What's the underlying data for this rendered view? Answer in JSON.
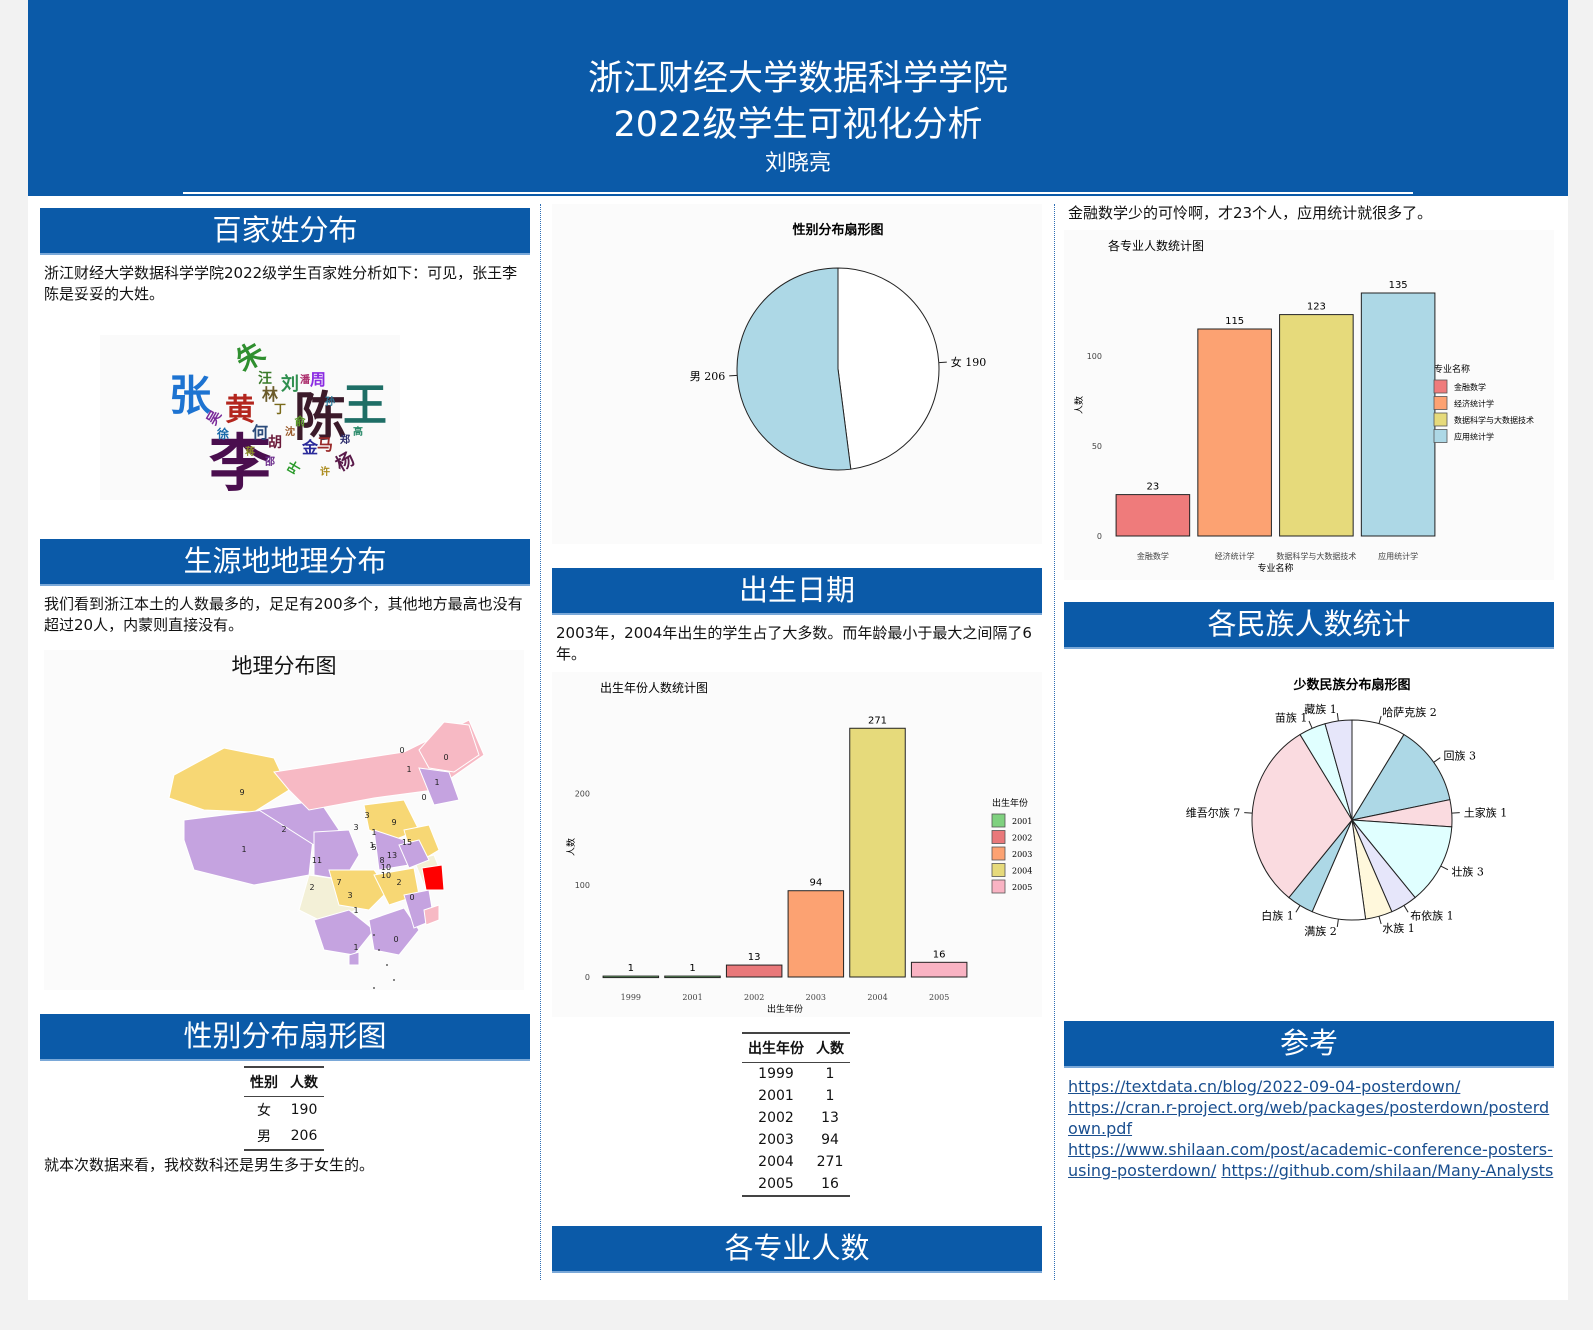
{
  "header": {
    "title1": "浙江财经大学数据科学学院",
    "title2": "2022级学生可视化分析",
    "author": "刘晓亮"
  },
  "surname": {
    "title": "百家姓分布",
    "text": "浙江财经大学数据科学学院2022级学生百家姓分析如下：可见，张王李陈是妥妥的大姓。",
    "words": [
      {
        "w": "李",
        "color": "#4a0e4e"
      },
      {
        "w": "陈",
        "color": "#3b1a2a"
      },
      {
        "w": "王",
        "color": "#1e6e66"
      },
      {
        "w": "张",
        "color": "#1d73d1"
      },
      {
        "w": "黄",
        "color": "#b3261e"
      },
      {
        "w": "朱",
        "color": "#2f8f2f"
      },
      {
        "w": "刘",
        "color": "#2f8f4f"
      },
      {
        "w": "周",
        "color": "#8a2be2"
      },
      {
        "w": "林",
        "color": "#6b5b2a"
      },
      {
        "w": "汪",
        "color": "#3a7a2a"
      },
      {
        "w": "吴",
        "color": "#7a2a9a"
      },
      {
        "w": "何",
        "color": "#2a4a7a"
      },
      {
        "w": "胡",
        "color": "#6a1a3a"
      },
      {
        "w": "金",
        "color": "#2a2a9a"
      },
      {
        "w": "马",
        "color": "#9a2a2a"
      },
      {
        "w": "杨",
        "color": "#5a1a4a"
      },
      {
        "w": "叶",
        "color": "#2a9a2a"
      },
      {
        "w": "徐",
        "color": "#1a6aaa"
      },
      {
        "w": "潘",
        "color": "#aa2a6a"
      },
      {
        "w": "丁",
        "color": "#7a6a1a"
      },
      {
        "w": "许",
        "color": "#aa8a1a"
      },
      {
        "w": "郑",
        "color": "#2a2a6a"
      },
      {
        "w": "俞",
        "color": "#5a9a2a"
      },
      {
        "w": "沈",
        "color": "#9a5a2a"
      },
      {
        "w": "孙",
        "color": "#2a7a9a"
      },
      {
        "w": "蒋",
        "color": "#8a8a2a"
      },
      {
        "w": "邵",
        "color": "#6a2a8a"
      },
      {
        "w": "高",
        "color": "#2a8a6a"
      }
    ]
  },
  "geo": {
    "title": "生源地地理分布",
    "text": "我们看到浙江本土的人数最多的，足足有200多个，其他地方最高也没有超过20人，内蒙则直接没有。",
    "map_title": "地理分布图",
    "labels": [
      "9",
      "2",
      "1",
      "11",
      "2",
      "3",
      "1",
      "7",
      "3",
      "10",
      "1",
      "2",
      "0",
      "0",
      "1",
      "3",
      "1",
      "5",
      "9",
      "13",
      "15",
      "10",
      "8",
      "0",
      "1",
      "0",
      "1",
      "0"
    ],
    "colors": {
      "high": "#ff0000",
      "mid": "#f7d774",
      "low": "#c5a3e0",
      "pale": "#f3f0d7",
      "pink": "#f7b9c4"
    }
  },
  "gender": {
    "title": "性别分布扇形图",
    "table_headers": [
      "性别",
      "人数"
    ],
    "rows": [
      [
        "女",
        "190"
      ],
      [
        "男",
        "206"
      ]
    ],
    "text": "就本次数据来看，我校数科还是男生多于女生的。"
  },
  "gender_chart": {
    "chart_data": {
      "type": "pie",
      "title": "性别分布扇形图",
      "slices": [
        {
          "label": "女 190",
          "name": "女",
          "value": 190,
          "color": "#ffffff"
        },
        {
          "label": "男 206",
          "name": "男",
          "value": 206,
          "color": "#add8e6"
        }
      ]
    }
  },
  "birth": {
    "title": "出生日期",
    "text": "2003年，2004年出生的学生占了大多数。而年龄最小于最大之间隔了6年。",
    "table_headers": [
      "出生年份",
      "人数"
    ],
    "rows": [
      [
        "1999",
        "1"
      ],
      [
        "2001",
        "1"
      ],
      [
        "2002",
        "13"
      ],
      [
        "2003",
        "94"
      ],
      [
        "2004",
        "271"
      ],
      [
        "2005",
        "16"
      ]
    ]
  },
  "birth_chart": {
    "chart_data": {
      "type": "bar",
      "title": "出生年份人数统计图",
      "xlabel": "出生年份",
      "ylabel": "人数",
      "categories": [
        "1999",
        "2001",
        "2002",
        "2003",
        "2004",
        "2005"
      ],
      "values": [
        1,
        1,
        13,
        94,
        271,
        16
      ],
      "colors": [
        "#7fd17f",
        "#7fd17f",
        "#e9787a",
        "#fca272",
        "#e6da7b",
        "#f9b3c3"
      ],
      "yticks": [
        0,
        100,
        200
      ],
      "ylim": [
        0,
        280
      ],
      "legend_title": "出生年份",
      "legend": [
        {
          "label": "2001",
          "color": "#7fd17f"
        },
        {
          "label": "2002",
          "color": "#e9787a"
        },
        {
          "label": "2003",
          "color": "#fca272"
        },
        {
          "label": "2004",
          "color": "#e6da7b"
        },
        {
          "label": "2005",
          "color": "#f9b3c3"
        }
      ]
    }
  },
  "major": {
    "title": "各专业人数",
    "text": "金融数学少的可怜啊，才23个人，应用统计就很多了。"
  },
  "major_chart": {
    "chart_data": {
      "type": "bar",
      "title": "各专业人数统计图",
      "xlabel": "专业名称",
      "ylabel": "人数",
      "categories": [
        "金融数学",
        "经济统计学",
        "数据科学与大数据技术",
        "应用统计学"
      ],
      "values": [
        23,
        115,
        123,
        135
      ],
      "colors": [
        "#ef7b7b",
        "#fca272",
        "#e6da7b",
        "#add8e6"
      ],
      "yticks": [
        0,
        50,
        100
      ],
      "ylim": [
        0,
        140
      ],
      "legend_title": "专业名称",
      "legend": [
        {
          "label": "金融数学",
          "color": "#ef7b7b"
        },
        {
          "label": "经济统计学",
          "color": "#fca272"
        },
        {
          "label": "数据科学与大数据技术",
          "color": "#e6da7b"
        },
        {
          "label": "应用统计学",
          "color": "#add8e6"
        }
      ]
    }
  },
  "ethnic": {
    "title": "各民族人数统计"
  },
  "ethnic_chart": {
    "chart_data": {
      "type": "pie",
      "title": "少数民族分布扇形图",
      "slices": [
        {
          "label": "哈萨克族 2",
          "value": 2,
          "color": "#ffffff"
        },
        {
          "label": "回族 3",
          "value": 3,
          "color": "#add8e6"
        },
        {
          "label": "土家族 1",
          "value": 1,
          "color": "#fadbe0"
        },
        {
          "label": "壮族 3",
          "value": 3,
          "color": "#e0ffff"
        },
        {
          "label": "布依族 1",
          "value": 1,
          "color": "#e6e6fa"
        },
        {
          "label": "水族 1",
          "value": 1,
          "color": "#fff8dc"
        },
        {
          "label": "满族 2",
          "value": 2,
          "color": "#ffffff"
        },
        {
          "label": "白族 1",
          "value": 1,
          "color": "#add8e6"
        },
        {
          "label": "维吾尔族 7",
          "value": 7,
          "color": "#fadbe0"
        },
        {
          "label": "苗族 1",
          "value": 1,
          "color": "#e0ffff"
        },
        {
          "label": "藏族 1",
          "value": 1,
          "color": "#e6e6fa"
        }
      ]
    }
  },
  "refs": {
    "title": "参考",
    "links": [
      "https://textdata.cn/blog/2022-09-04-posterdown/",
      "https://cran.r-project.org/web/packages/posterdown/posterdown.pdf",
      "https://www.shilaan.com/post/academic-conference-posters-using-posterdown/",
      "https://github.com/shilaan/Many-Analysts"
    ]
  }
}
